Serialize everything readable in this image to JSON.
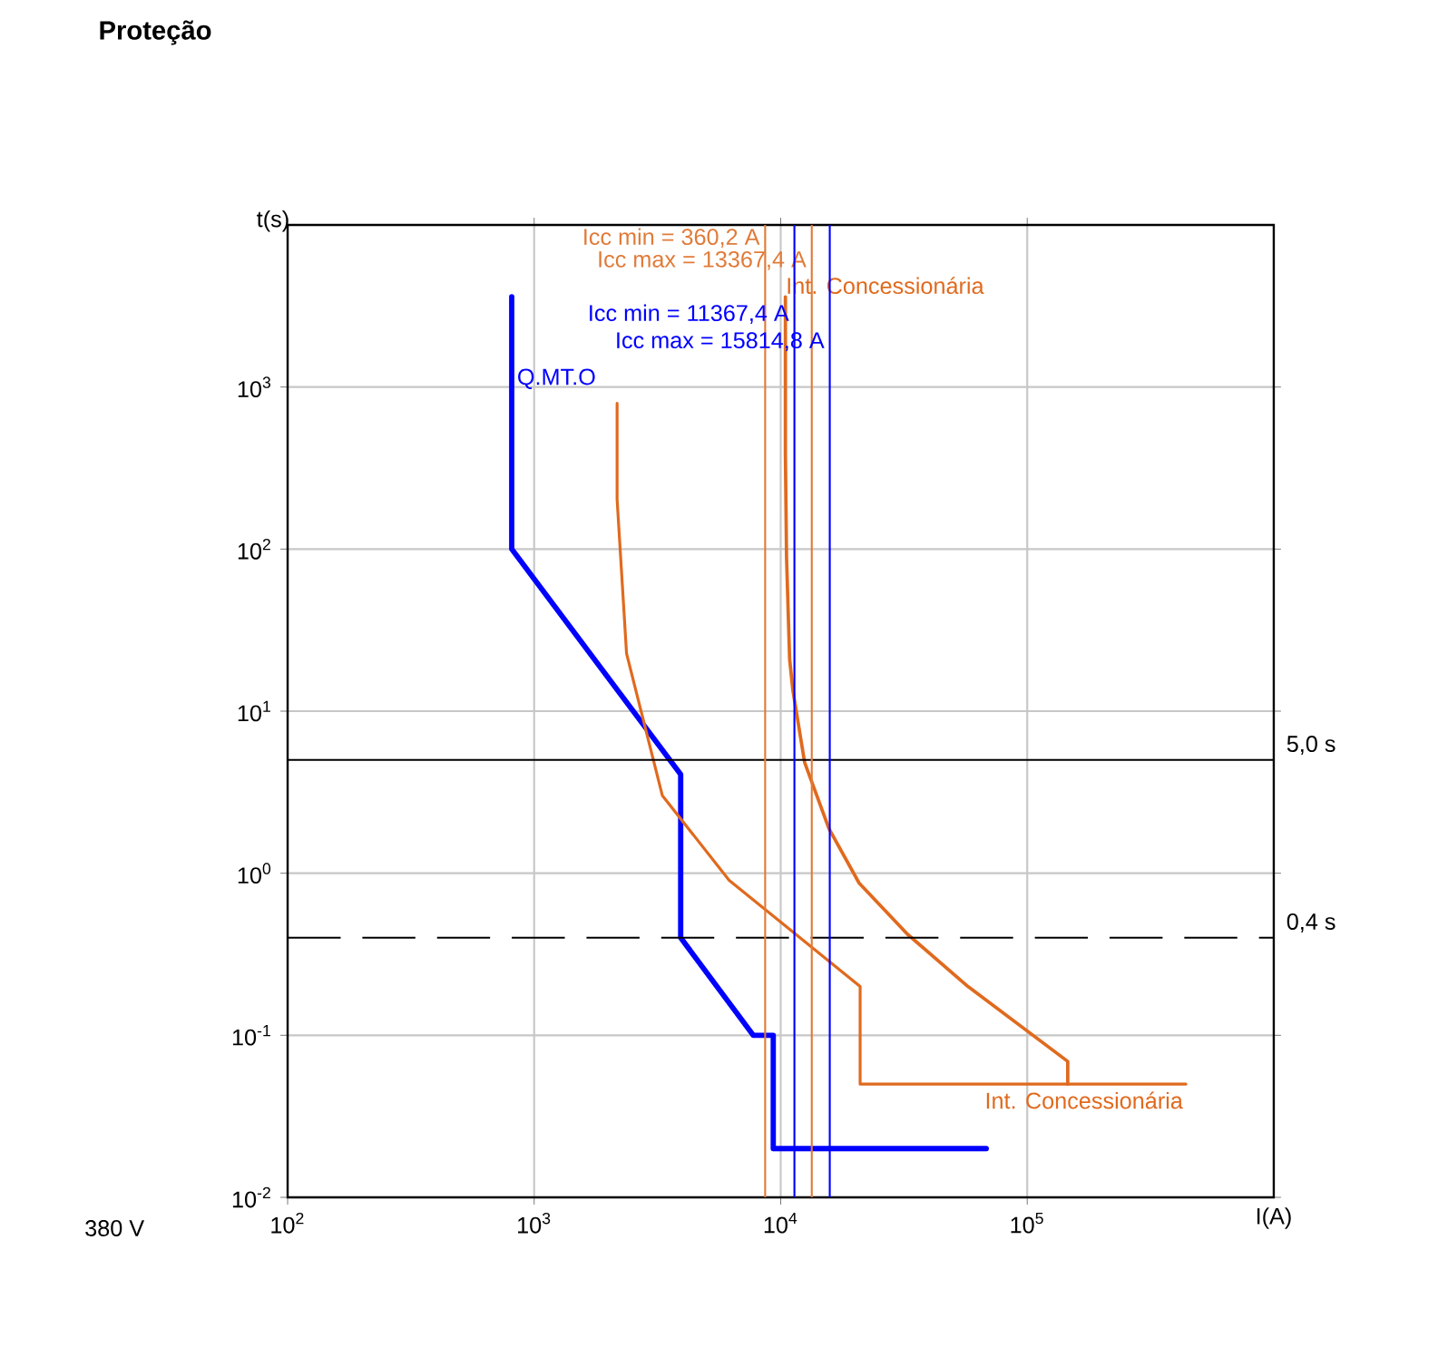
{
  "chart_data": {
    "type": "line",
    "title": "Proteção",
    "xlabel": "I(A)",
    "ylabel": "t(s)",
    "log": "xy",
    "grid": true,
    "xlim": [
      100,
      1000000
    ],
    "ylim": [
      0.01,
      10000
    ],
    "xticks": [
      {
        "value": 100,
        "label": "10$^{2}$"
      },
      {
        "value": 1000,
        "label": "10$^{3}$"
      },
      {
        "value": 10000,
        "label": "10$^{4}$"
      },
      {
        "value": 100000,
        "label": "10$^{5}$"
      }
    ],
    "yticks": [
      {
        "value": 0.01,
        "label": "10$^{-2}$"
      },
      {
        "value": 0.1,
        "label": "10$^{-1}$"
      },
      {
        "value": 1,
        "label": "10$^{0}$"
      },
      {
        "value": 10,
        "label": "10$^{1}$"
      },
      {
        "value": 100,
        "label": "10$^{2}$"
      },
      {
        "value": 1000,
        "label": "10$^{3}$"
      }
    ],
    "series": [
      {
        "name": "Q.MT.O",
        "color": "#0000ff",
        "x": [
          811,
          811,
          3930,
          3930,
          7740,
          9330,
          9330,
          68200
        ],
        "values": [
          3600,
          100,
          4.07,
          0.4,
          0.1,
          0.1,
          0.02,
          0.02
        ]
      },
      {
        "name": "Int. Concessionária",
        "color": "#e06a1e",
        "x": [
          10450,
          10450,
          10560,
          10870,
          11200,
          12500,
          15700,
          20800,
          32700,
          57500,
          146000,
          146000
        ],
        "values": [
          3600,
          386,
          89.6,
          20.9,
          13.5,
          4.84,
          1.88,
          0.87,
          0.42,
          0.2,
          0.069,
          0.05
        ]
      },
      {
        "name": "Int. Concessionária",
        "color": "#e06a1e",
        "x": [
          2170,
          2170,
          2370,
          3310,
          6180,
          21000,
          21000,
          440000
        ],
        "values": [
          793,
          202,
          22.7,
          3.02,
          0.905,
          0.2,
          0.05,
          0.05
        ]
      }
    ],
    "ref_lines": [
      {
        "axis": "y",
        "value": 5,
        "label": "5,0 s",
        "color": "#000000",
        "line_style": "solid"
      },
      {
        "axis": "y",
        "value": 0.4,
        "label": "0,4 s",
        "color": "#000000",
        "line_style": "dashed"
      },
      {
        "axis": "x",
        "value": 8650,
        "color": "#e07b39",
        "line_style": "solid"
      },
      {
        "axis": "x",
        "value": 13367.4,
        "label": "Icc max = 13367,4 A",
        "color": "#e07b39",
        "line_style": "solid"
      },
      {
        "axis": "x",
        "value": 11367.4,
        "label": "Icc min = 11367,4 A",
        "color": "#0000ff",
        "line_style": "solid"
      },
      {
        "axis": "x",
        "value": 15814.8,
        "label": "Icc max = 15814,8 A",
        "color": "#0000ff",
        "line_style": "solid"
      }
    ],
    "annotations": [
      "380 V",
      "Icc min = 360,2 A"
    ]
  }
}
